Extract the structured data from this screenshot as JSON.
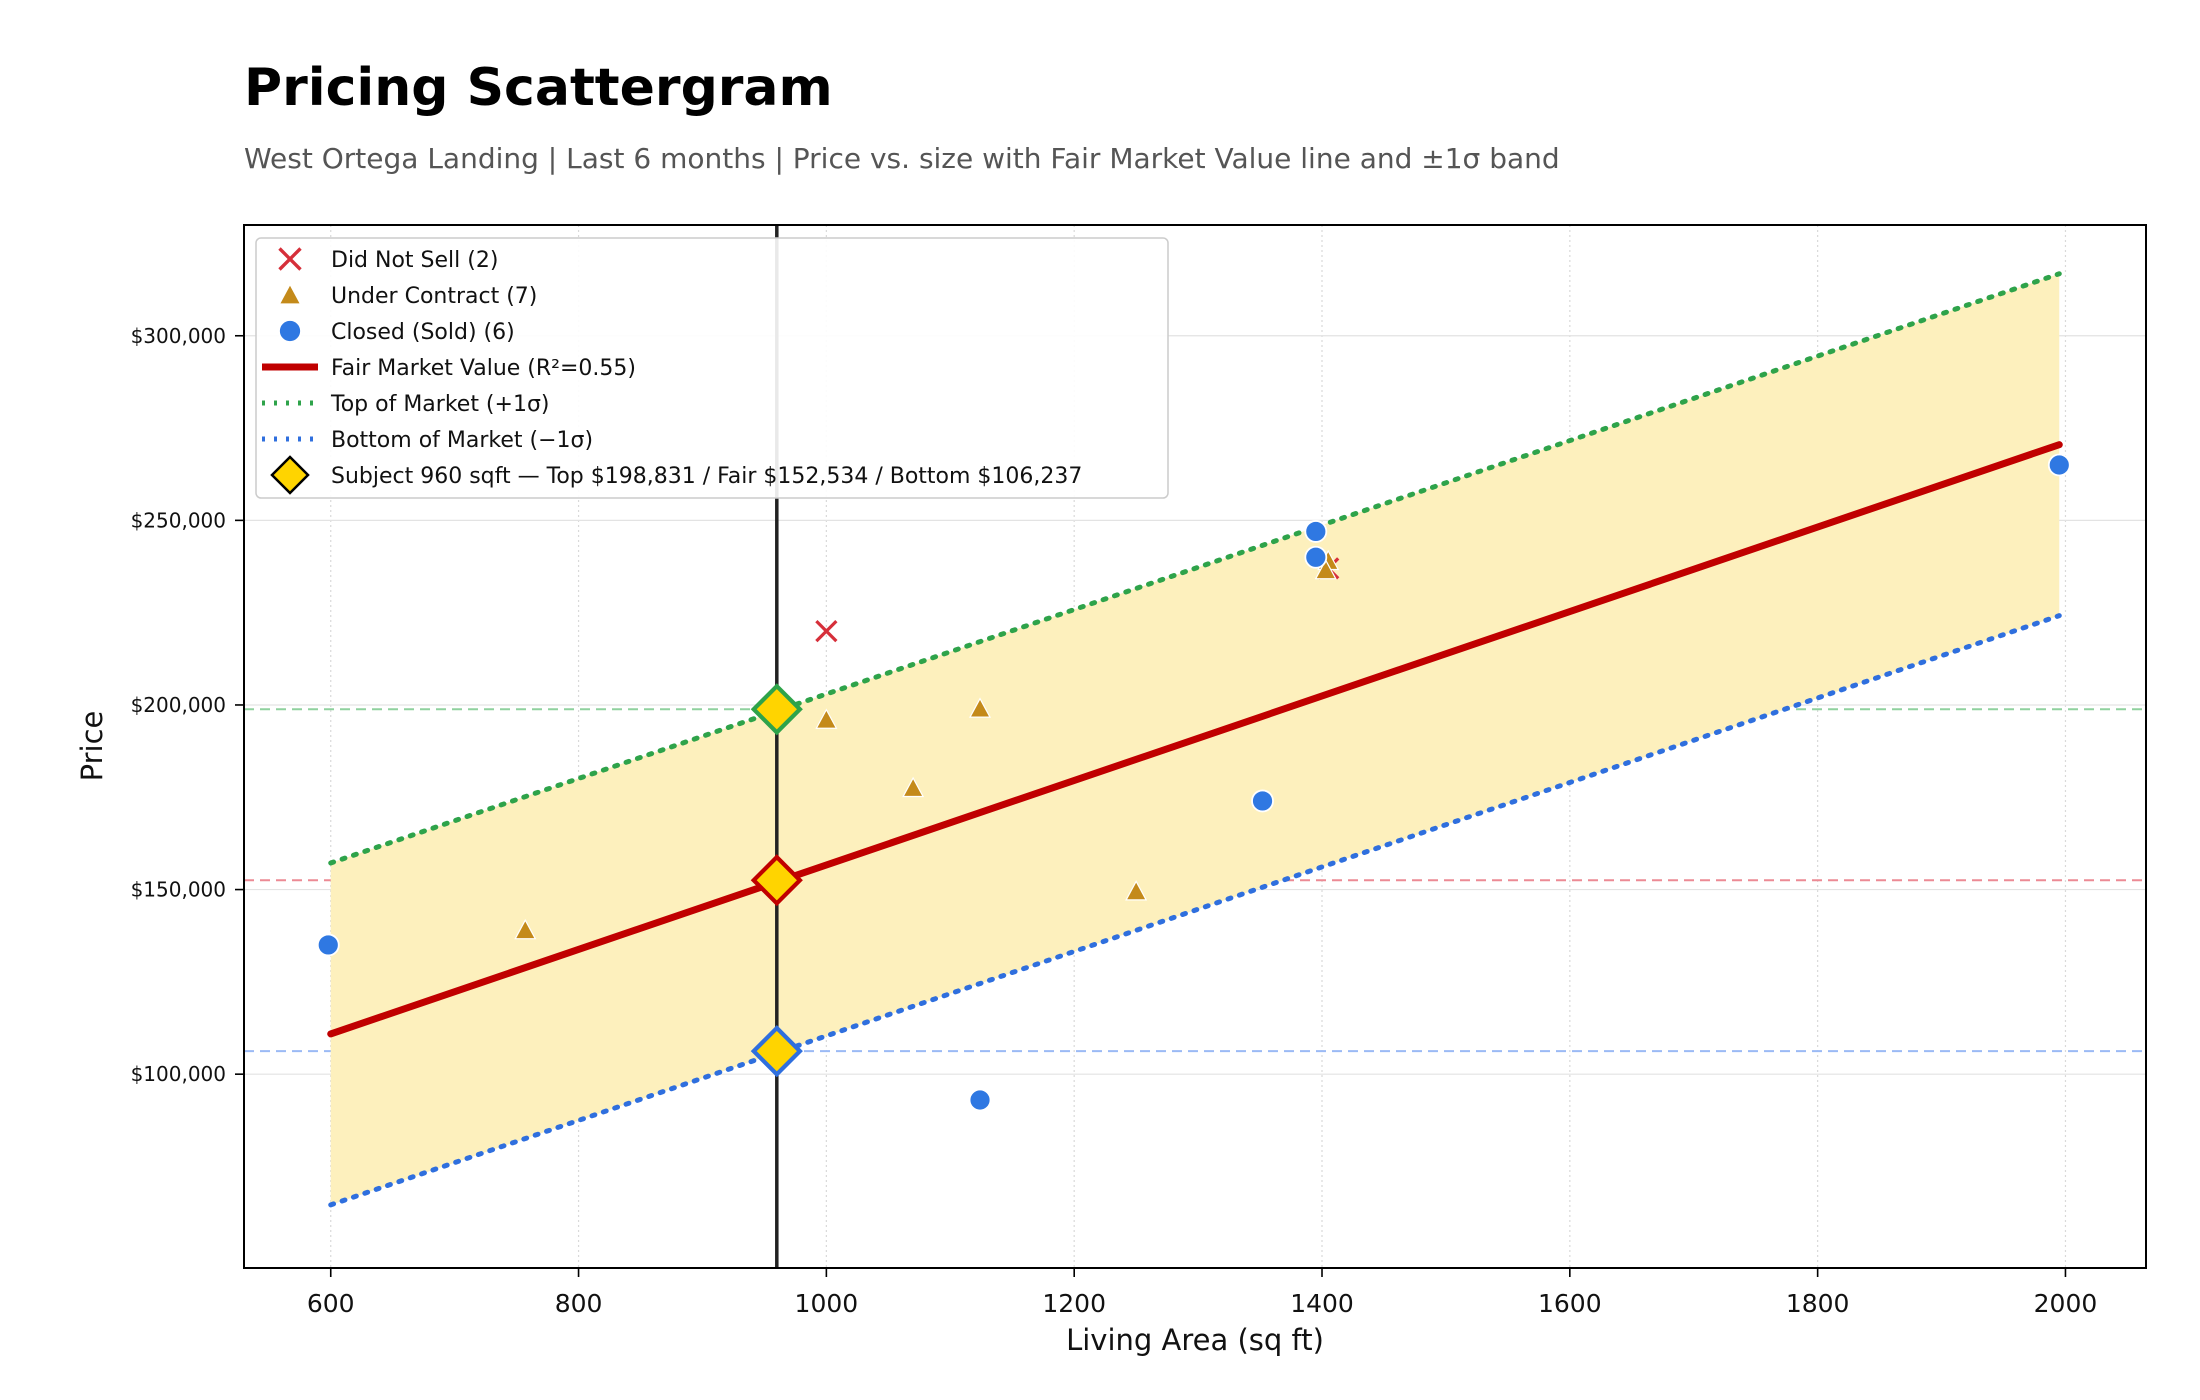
{
  "title": "Pricing Scattergram",
  "subtitle": "West Ortega Landing  |  Last 6 months  |  Price vs. size with Fair Market Value line and ±1σ band",
  "colors": {
    "did_not_sell": "#d62f3a",
    "under_contract": "#c48a1a",
    "closed": "#2f78e2",
    "fair_line": "#c00000",
    "top_line": "#2ea34a",
    "bottom_line": "#2f6fde",
    "band_fill": "#fdf0bd",
    "subject_fill": "#ffd400",
    "ref_top": "#8fd19e",
    "ref_fair": "#ec8a94",
    "ref_bottom": "#9bbaf5",
    "subject_vline": "#222222"
  },
  "chart_data": {
    "type": "scatter",
    "xlabel": "Living Area (sq ft)",
    "ylabel": "Price",
    "xlim": [
      530,
      2065
    ],
    "ylim": [
      47500,
      330000
    ],
    "xticks": [
      600,
      800,
      1000,
      1200,
      1400,
      1600,
      1800,
      2000
    ],
    "xtick_labels": [
      "600",
      "800",
      "1000",
      "1200",
      "1400",
      "1600",
      "1800",
      "2000"
    ],
    "yticks": [
      100000,
      150000,
      200000,
      250000,
      300000
    ],
    "ytick_labels": [
      "$100,000",
      "$150,000",
      "$200,000",
      "$250,000",
      "$300,000"
    ],
    "grid": true,
    "legend_position": "top-left",
    "series": [
      {
        "key": "did_not_sell",
        "name": "Did Not Sell (2)",
        "marker": "x",
        "points": [
          {
            "x": 1000,
            "y": 220000
          },
          {
            "x": 1405,
            "y": 237000
          }
        ]
      },
      {
        "key": "under_contract",
        "name": "Under Contract (7)",
        "marker": "triangle",
        "points": [
          {
            "x": 757,
            "y": 139000
          },
          {
            "x": 1000,
            "y": 196000
          },
          {
            "x": 1070,
            "y": 177500
          },
          {
            "x": 1124,
            "y": 199000
          },
          {
            "x": 1250,
            "y": 149500
          },
          {
            "x": 1405,
            "y": 239000
          },
          {
            "x": 1403,
            "y": 236500
          }
        ]
      },
      {
        "key": "closed",
        "name": "Closed (Sold) (6)",
        "marker": "circle",
        "points": [
          {
            "x": 598,
            "y": 135000
          },
          {
            "x": 1124,
            "y": 93000
          },
          {
            "x": 1352,
            "y": 174000
          },
          {
            "x": 1395,
            "y": 247000
          },
          {
            "x": 1395,
            "y": 240000
          },
          {
            "x": 1995,
            "y": 265000
          }
        ]
      }
    ],
    "lines": [
      {
        "key": "fair",
        "name": "Fair Market Value (R²=0.55)",
        "style": "solid",
        "x": [
          600,
          1995
        ],
        "y": [
          110900,
          270500
        ]
      },
      {
        "key": "top",
        "name": "Top of Market (+1σ)",
        "style": "dotted",
        "x": [
          600,
          1995
        ],
        "y": [
          157200,
          316800
        ]
      },
      {
        "key": "bottom",
        "name": "Bottom of Market (−1σ)",
        "style": "dotted",
        "x": [
          600,
          1995
        ],
        "y": [
          64600,
          224200
        ]
      }
    ],
    "band": {
      "x": [
        600,
        1995
      ],
      "lower": [
        64600,
        224200
      ],
      "upper": [
        157200,
        316800
      ]
    },
    "subject": {
      "name": "Subject 960 sqft  —  Top $198,831 / Fair $152,534 / Bottom $106,237",
      "x": 960,
      "top": 198831,
      "fair": 152534,
      "bottom": 106237
    }
  }
}
